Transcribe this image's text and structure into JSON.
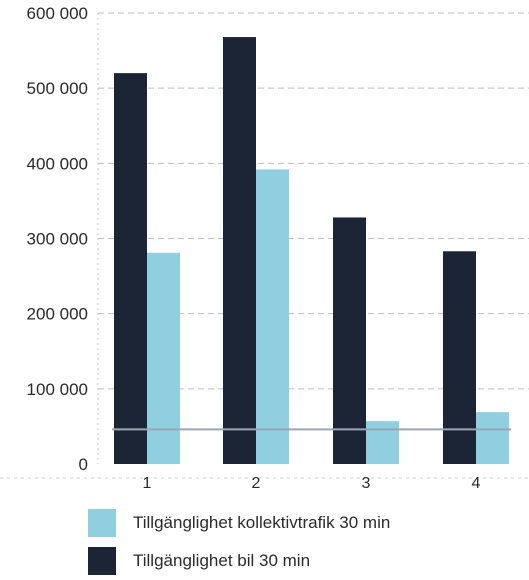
{
  "chart_data": {
    "type": "bar",
    "categories": [
      "1",
      "2",
      "3",
      "4"
    ],
    "y_ticks": [
      "0",
      "100 000",
      "200 000",
      "300 000",
      "400 000",
      "500 000",
      "600 000"
    ],
    "ylim": [
      0,
      600000
    ],
    "grid": true,
    "legend_position": "bottom",
    "series": [
      {
        "name": "Tillgänglighet bil 30 min",
        "color": "#1c2536",
        "values": [
          520000,
          568000,
          328000,
          283000
        ]
      },
      {
        "name": "Tillgänglighet kollektivtrafik 30 min",
        "color": "#8fcfdf",
        "values": [
          281000,
          392000,
          57000,
          69000
        ]
      }
    ],
    "reference_line_value": 46000,
    "reference_line_color": "#9aa8b4"
  }
}
